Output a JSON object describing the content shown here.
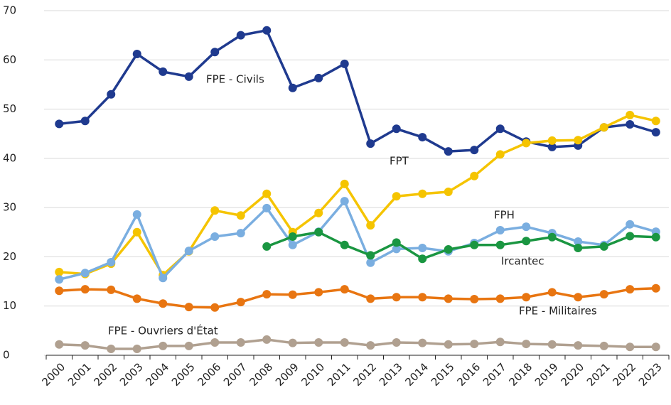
{
  "chart_data": {
    "type": "line",
    "categories": [
      "2000",
      "2001",
      "2002",
      "2003",
      "2004",
      "2005",
      "2006",
      "2007",
      "2008",
      "2009",
      "2010",
      "2011",
      "2012",
      "2013",
      "2014",
      "2015",
      "2016",
      "2017",
      "2018",
      "2019",
      "2020",
      "2021",
      "2022",
      "2023"
    ],
    "ylim": [
      0,
      70
    ],
    "yticks": [
      0,
      10,
      20,
      30,
      40,
      50,
      60,
      70
    ],
    "grid": true,
    "series": [
      {
        "name": "FPE  - Civils",
        "color": "#1f3a8f",
        "values": [
          47,
          47.6,
          53,
          61.2,
          57.6,
          56.6,
          61.6,
          65,
          66,
          54.3,
          56.3,
          59.2,
          43,
          46,
          44.3,
          41.4,
          41.7,
          46,
          43.4,
          42.3,
          42.6,
          46.3,
          46.9,
          45.3
        ]
      },
      {
        "name": "FPT",
        "color": "#f5c400",
        "values": [
          16.9,
          16.5,
          18.6,
          25,
          16.3,
          21.1,
          29.4,
          28.4,
          32.8,
          25,
          28.9,
          34.8,
          26.4,
          32.3,
          32.8,
          33.2,
          36.4,
          40.8,
          43.1,
          43.6,
          43.7,
          46.3,
          48.8,
          47.6
        ]
      },
      {
        "name": "FPH",
        "color": "#7aaee0",
        "values": [
          15.4,
          16.7,
          18.9,
          28.6,
          15.7,
          21.2,
          24.1,
          24.8,
          29.9,
          22.4,
          25.1,
          31.3,
          18.8,
          21.6,
          21.8,
          21.1,
          22.8,
          25.4,
          26.1,
          24.8,
          23.1,
          22.4,
          26.6,
          25.1
        ]
      },
      {
        "name": "Ircantec",
        "color": "#1a9641",
        "values": [
          null,
          null,
          null,
          null,
          null,
          null,
          null,
          null,
          22.1,
          24.1,
          25,
          22.4,
          20.3,
          22.9,
          19.6,
          21.5,
          22.4,
          22.4,
          23.2,
          24,
          21.8,
          22.1,
          24.2,
          24
        ]
      },
      {
        "name": "FPE  - Militaires",
        "color": "#e87511",
        "values": [
          13.1,
          13.4,
          13.3,
          11.5,
          10.5,
          9.8,
          9.7,
          10.8,
          12.4,
          12.3,
          12.8,
          13.4,
          11.5,
          11.8,
          11.8,
          11.5,
          11.4,
          11.5,
          11.8,
          12.8,
          11.8,
          12.4,
          13.4,
          13.6
        ]
      },
      {
        "name": "FPE  - Ouvriers d'État",
        "color": "#b0a090",
        "values": [
          2.2,
          2,
          1.3,
          1.3,
          1.9,
          1.9,
          2.6,
          2.6,
          3.2,
          2.5,
          2.6,
          2.6,
          2,
          2.6,
          2.5,
          2.2,
          2.3,
          2.7,
          2.3,
          2.2,
          2,
          1.9,
          1.7,
          1.7
        ]
      }
    ]
  }
}
